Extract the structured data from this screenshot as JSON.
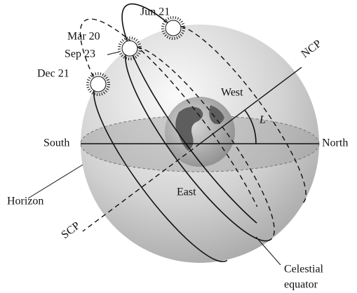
{
  "labels": {
    "jun": "Jun 21",
    "mar": "Mar 20",
    "sep": "Sep 23",
    "dec": "Dec 21",
    "ncp": "NCP",
    "west": "West",
    "angle": "L",
    "south": "South",
    "north": "North",
    "horizon": "Horizon",
    "east": "East",
    "scp": "SCP",
    "equator": [
      "Celestial",
      "equator"
    ]
  }
}
